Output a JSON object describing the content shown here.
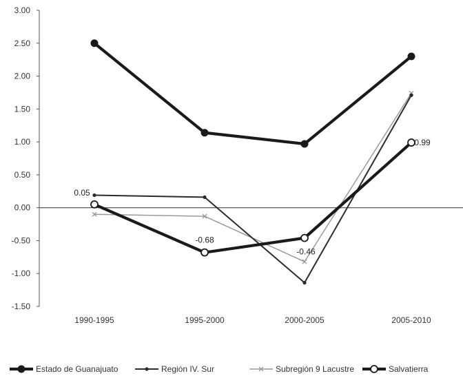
{
  "chart_data": {
    "type": "line",
    "title": "",
    "xlabel": "",
    "ylabel": "",
    "categories": [
      "1990-1995",
      "1995-2000",
      "2000-2005",
      "2005-2010"
    ],
    "ylim": [
      -1.5,
      3.0
    ],
    "yticks": [
      "3.00",
      "2.50",
      "2.00",
      "1.50",
      "1.00",
      "0.50",
      "0.00",
      "-0.50",
      "-1.00",
      "-1.50"
    ],
    "grid": false,
    "legend_position": "bottom",
    "series": [
      {
        "name": "Estado de Guanajuato",
        "values": [
          2.5,
          1.14,
          0.97,
          2.3
        ],
        "color": "#1a1a1a",
        "marker": "filled-circle"
      },
      {
        "name": "Región IV. Sur",
        "values": [
          0.19,
          0.16,
          -1.14,
          1.71
        ],
        "color": "#2b2b2b",
        "marker": "small-dot"
      },
      {
        "name": "Subregión 9 Lacustre",
        "values": [
          -0.1,
          -0.13,
          -0.82,
          1.74
        ],
        "color": "#9a9a9a",
        "marker": "small-x"
      },
      {
        "name": "Salvatierra",
        "values": [
          0.05,
          -0.68,
          -0.46,
          0.99
        ],
        "color": "#1a1a1a",
        "marker": "open-circle",
        "labels": [
          "0.05",
          "-0.68",
          "-0.46",
          "0.99"
        ]
      }
    ]
  }
}
